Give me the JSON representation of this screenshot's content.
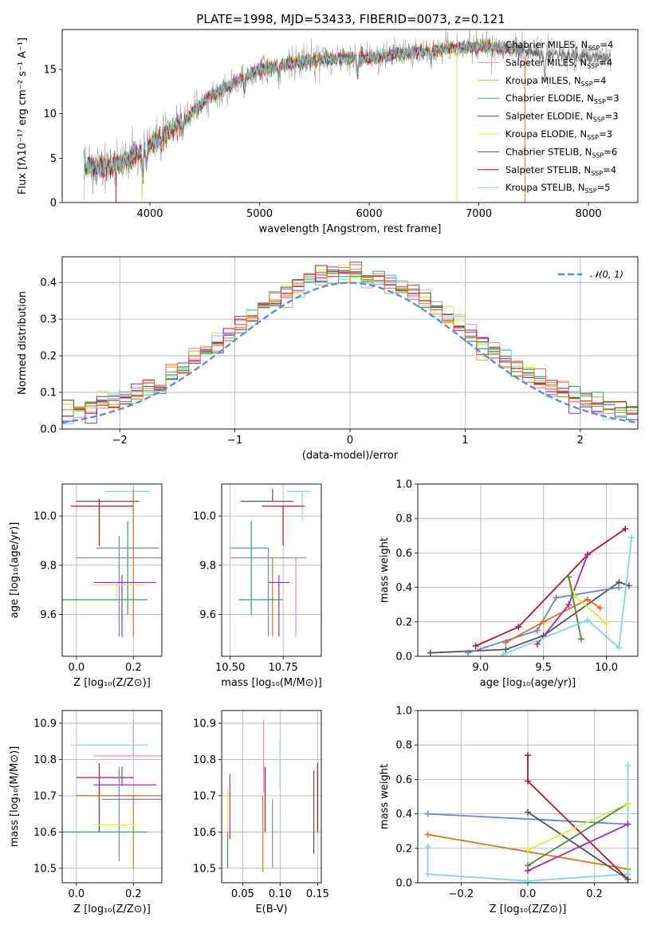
{
  "title": "PLATE=1998, MJD=53433, FIBERID=0073, z=0.121",
  "colors": {
    "Chabrier MILES": "#9a9a9a",
    "Salpeter MILES": "#e78ac3",
    "Kroupa MILES": "#e6a23c",
    "Chabrier ELODIE": "#2ca25f",
    "Salpeter ELODIE": "#9b30b0",
    "Kroupa ELODIE": "#d9ec4a",
    "Chabrier STELIB": "#555555",
    "Salpeter STELIB": "#b2182b",
    "Kroupa STELIB": "#7fd7dc",
    "blue": "#6688cc",
    "orange": "#e07020",
    "green2": "#4a8a3a"
  },
  "chart_data": [
    {
      "id": "spectrum",
      "type": "line",
      "xlabel": "wavelength [Angstrom, rest frame]",
      "ylabel": "Flux [fλ10⁻¹⁷ erg cm⁻² s⁻¹ A⁻¹]",
      "xlim": [
        3200,
        8450
      ],
      "ylim": [
        0,
        19.5
      ],
      "xticks": [
        4000,
        5000,
        6000,
        7000,
        8000
      ],
      "yticks": [
        0,
        5,
        10,
        15
      ],
      "continuum": [
        [
          3400,
          4.3
        ],
        [
          3600,
          4.0
        ],
        [
          3800,
          4.8
        ],
        [
          3950,
          6.0
        ],
        [
          4050,
          7.0
        ],
        [
          4300,
          9.0
        ],
        [
          4500,
          11.5
        ],
        [
          4800,
          13.8
        ],
        [
          5000,
          15.0
        ],
        [
          5300,
          15.7
        ],
        [
          5600,
          16.2
        ],
        [
          6000,
          16.3
        ],
        [
          6300,
          16.8
        ],
        [
          6600,
          17.2
        ],
        [
          7000,
          17.6
        ],
        [
          7300,
          17.4
        ],
        [
          7600,
          16.7
        ],
        [
          7900,
          16.4
        ],
        [
          8200,
          16.4
        ]
      ],
      "legend": [
        {
          "label": "Chabrier MILES, N",
          "sub": "SSP",
          "value": "=4",
          "color": "#9a9a9a"
        },
        {
          "label": "Salpeter MILES, N",
          "sub": "SSP",
          "value": "=4",
          "color": "#e78ac3"
        },
        {
          "label": "Kroupa MILES, N",
          "sub": "SSP",
          "value": "=4",
          "color": "#e6a23c"
        },
        {
          "label": "Chabrier ELODIE, N",
          "sub": "SSP",
          "value": "=3",
          "color": "#2ca25f"
        },
        {
          "label": "Salpeter ELODIE, N",
          "sub": "SSP",
          "value": "=3",
          "color": "#9b30b0"
        },
        {
          "label": "Kroupa ELODIE, N",
          "sub": "SSP",
          "value": "=3",
          "color": "#d9ec4a"
        },
        {
          "label": "Chabrier STELIB, N",
          "sub": "SSP",
          "value": "=6",
          "color": "#555555"
        },
        {
          "label": "Salpeter STELIB, N",
          "sub": "SSP",
          "value": "=4",
          "color": "#b2182b"
        },
        {
          "label": "Kroupa STELIB, N",
          "sub": "SSP",
          "value": "=5",
          "color": "#7fd7dc"
        }
      ]
    },
    {
      "id": "residuals",
      "type": "step",
      "xlabel": "(data-model)/error",
      "ylabel": "Normed distribution",
      "xlim": [
        -2.5,
        2.5
      ],
      "ylim": [
        0,
        0.47
      ],
      "xticks": [
        -2,
        -1,
        0,
        1,
        2
      ],
      "yticks": [
        0.0,
        0.1,
        0.2,
        0.3,
        0.4
      ],
      "normal_label": "𝒩(0, 1)",
      "normal_color": "#5b8fd9"
    },
    {
      "id": "age-vs-Z",
      "type": "errorbar",
      "xlabel": "Z [log₁₀(Z/Z⊙)]",
      "ylabel": "age  [log₁₀(age/yr)]",
      "xlim": [
        -0.05,
        0.3
      ],
      "ylim": [
        9.43,
        10.13
      ],
      "xticks": [
        0.0,
        0.2
      ],
      "yticks": [
        9.6,
        9.8,
        10.0
      ],
      "points": [
        {
          "color": "#7fd7dc",
          "x": 0.2,
          "y": 10.1,
          "xerr": [
            0.1,
            0.06
          ],
          "yerr": [
            0.12,
            0.02
          ]
        },
        {
          "color": "#555555",
          "x": 0.12,
          "y": 10.06,
          "xerr": [
            0.12,
            0.1
          ],
          "yerr": [
            0.0,
            0.0
          ]
        },
        {
          "color": "#b2182b",
          "x": 0.08,
          "y": 10.04,
          "xerr": [
            0.1,
            0.12
          ],
          "yerr": [
            0.16,
            0.03
          ]
        },
        {
          "color": "#2ca25f",
          "x": 0.18,
          "y": 9.98,
          "xerr": [
            0.0,
            0.0
          ],
          "yerr": [
            0.38,
            0.0
          ]
        },
        {
          "color": "#6688cc",
          "x": 0.15,
          "y": 9.87,
          "xerr": [
            0.08,
            0.14
          ],
          "yerr": [
            0.36,
            0.05
          ]
        },
        {
          "color": "#e07020",
          "x": 0.2,
          "y": 9.83,
          "xerr": [
            0.2,
            0.1
          ],
          "yerr": [
            0.32,
            0.28
          ]
        },
        {
          "color": "#9b30b0",
          "x": 0.16,
          "y": 9.73,
          "xerr": [
            0.1,
            0.12
          ],
          "yerr": [
            0.22,
            0.03
          ]
        },
        {
          "color": "#d9ec4a",
          "x": 0.14,
          "y": 9.72,
          "xerr": [
            0.08,
            0.1
          ],
          "yerr": [
            0.05,
            0.0
          ]
        },
        {
          "color": "#2ca25f",
          "x": 0.1,
          "y": 9.66,
          "xerr": [
            0.17,
            0.15
          ],
          "yerr": [
            0.0,
            0.0
          ]
        }
      ]
    },
    {
      "id": "age-vs-mass",
      "type": "errorbar",
      "xlabel": "mass [log₁₀(M/M⊙)]",
      "ylabel": "",
      "xlim": [
        10.46,
        10.93
      ],
      "ylim": [
        9.43,
        10.13
      ],
      "xticks": [
        10.5,
        10.75
      ],
      "yticks": [
        9.6,
        9.8,
        10.0
      ],
      "points": [
        {
          "color": "#7fd7dc",
          "x": 10.84,
          "y": 10.1,
          "xerr": [
            0.07,
            0.04
          ],
          "yerr": [
            0.12,
            0.0
          ]
        },
        {
          "color": "#555555",
          "x": 10.7,
          "y": 10.06,
          "xerr": [
            0.15,
            0.1
          ],
          "yerr": [
            0.0,
            0.05
          ]
        },
        {
          "color": "#b2182b",
          "x": 10.75,
          "y": 10.04,
          "xerr": [
            0.1,
            0.1
          ],
          "yerr": [
            0.16,
            0.0
          ]
        },
        {
          "color": "#2ca25f",
          "x": 10.6,
          "y": 9.98,
          "xerr": [
            0.0,
            0.0
          ],
          "yerr": [
            0.38,
            0.0
          ]
        },
        {
          "color": "#6688cc",
          "x": 10.68,
          "y": 9.87,
          "xerr": [
            0.18,
            0.0
          ],
          "yerr": [
            0.36,
            0.0
          ]
        },
        {
          "color": "#e07020",
          "x": 10.7,
          "y": 9.83,
          "xerr": [
            0.2,
            0.16
          ],
          "yerr": [
            0.32,
            0.0
          ]
        },
        {
          "color": "#9b30b0",
          "x": 10.73,
          "y": 9.73,
          "xerr": [
            0.05,
            0.05
          ],
          "yerr": [
            0.22,
            0.03
          ]
        },
        {
          "color": "#e78ac3",
          "x": 10.81,
          "y": 9.83,
          "xerr": [
            0.0,
            0.0
          ],
          "yerr": [
            0.32,
            0.0
          ]
        },
        {
          "color": "#2ca25f",
          "x": 10.61,
          "y": 9.66,
          "xerr": [
            0.07,
            0.14
          ],
          "yerr": [
            0.0,
            0.0
          ]
        }
      ]
    },
    {
      "id": "weight-vs-age",
      "type": "line",
      "xlabel": "age  [log₁₀(age/yr)]",
      "ylabel": "mass weight",
      "xlim": [
        8.5,
        10.25
      ],
      "ylim": [
        0.0,
        1.0
      ],
      "xticks": [
        9.0,
        9.5,
        10.0
      ],
      "yticks": [
        0.0,
        0.2,
        0.4,
        0.6,
        0.8,
        1.0
      ],
      "series": [
        {
          "color": "#b2182b",
          "x": [
            8.96,
            9.3,
            9.85,
            10.15
          ],
          "y": [
            0.06,
            0.17,
            0.59,
            0.74
          ]
        },
        {
          "color": "#555555",
          "x": [
            8.6,
            9.2,
            9.5,
            10.1,
            10.18
          ],
          "y": [
            0.02,
            0.04,
            0.12,
            0.43,
            0.41
          ]
        },
        {
          "color": "#6688cc",
          "x": [
            8.9,
            9.45,
            9.6,
            10.1
          ],
          "y": [
            0.02,
            0.15,
            0.34,
            0.4
          ]
        },
        {
          "color": "#e07020",
          "x": [
            9.2,
            9.5,
            9.85,
            9.95
          ],
          "y": [
            0.08,
            0.2,
            0.33,
            0.28
          ]
        },
        {
          "color": "#9b30b0",
          "x": [
            9.45,
            9.7,
            9.85
          ],
          "y": [
            0.07,
            0.3,
            0.59
          ]
        },
        {
          "color": "#d9ec4a",
          "x": [
            9.7,
            9.75,
            10.0
          ],
          "y": [
            0.46,
            0.35,
            0.19
          ]
        },
        {
          "color": "#4a8a3a",
          "x": [
            9.7,
            9.8
          ],
          "y": [
            0.46,
            0.1
          ]
        },
        {
          "color": "#7fd7dc",
          "x": [
            9.18,
            9.85,
            10.1,
            10.2
          ],
          "y": [
            0.01,
            0.21,
            0.05,
            0.69
          ]
        }
      ]
    },
    {
      "id": "mass-vs-Z",
      "type": "errorbar",
      "xlabel": "Z [log₁₀(Z/Z⊙)]",
      "ylabel": "mass [log₁₀(M/M⊙)]",
      "xlim": [
        -0.05,
        0.3
      ],
      "ylim": [
        10.46,
        10.935
      ],
      "xticks": [
        0.0,
        0.2
      ],
      "yticks": [
        10.5,
        10.6,
        10.7,
        10.8,
        10.9
      ],
      "points": [
        {
          "color": "#e78ac3",
          "x": 0.2,
          "y": 10.81,
          "xerr": [
            0.14,
            0.1
          ],
          "yerr": [
            0.0,
            0.1
          ]
        },
        {
          "color": "#7fd7dc",
          "x": 0.2,
          "y": 10.84,
          "xerr": [
            0.22,
            0.05
          ],
          "yerr": [
            0.02,
            0.0
          ]
        },
        {
          "color": "#b2182b",
          "x": 0.08,
          "y": 10.75,
          "xerr": [
            0.08,
            0.12
          ],
          "yerr": [
            0.15,
            0.04
          ]
        },
        {
          "color": "#9b30b0",
          "x": 0.16,
          "y": 10.73,
          "xerr": [
            0.1,
            0.12
          ],
          "yerr": [
            0.0,
            0.05
          ]
        },
        {
          "color": "#555555",
          "x": 0.1,
          "y": 10.7,
          "xerr": [
            0.1,
            0.12
          ],
          "yerr": [
            0.0,
            0.0
          ]
        },
        {
          "color": "#e07020",
          "x": 0.2,
          "y": 10.7,
          "xerr": [
            0.2,
            0.1
          ],
          "yerr": [
            0.2,
            0.0
          ]
        },
        {
          "color": "#6688cc",
          "x": 0.15,
          "y": 10.69,
          "xerr": [
            0.06,
            0.15
          ],
          "yerr": [
            0.17,
            0.09
          ]
        },
        {
          "color": "#d9ec4a",
          "x": 0.14,
          "y": 10.62,
          "xerr": [
            0.08,
            0.07
          ],
          "yerr": [
            0.0,
            0.0
          ]
        },
        {
          "color": "#2ca25f",
          "x": 0.1,
          "y": 10.6,
          "xerr": [
            0.17,
            0.15
          ],
          "yerr": [
            0.0,
            0.0
          ]
        }
      ]
    },
    {
      "id": "mass-vs-ebv",
      "type": "errorbar",
      "xlabel": "E(B-V)",
      "ylabel": "",
      "xlim": [
        0.022,
        0.155
      ],
      "ylim": [
        10.46,
        10.935
      ],
      "xticks": [
        0.05,
        0.1,
        0.15
      ],
      "yticks": [
        10.5,
        10.6,
        10.7,
        10.8,
        10.9
      ],
      "points": [
        {
          "color": "#d9ec4a",
          "x": 0.03,
          "y": 10.62,
          "xerr": [
            0.0,
            0.0
          ],
          "yerr": [
            0.12,
            0.1
          ]
        },
        {
          "color": "#9b30b0",
          "x": 0.033,
          "y": 10.68,
          "xerr": [
            0.0,
            0.0
          ],
          "yerr": [
            0.1,
            0.08
          ]
        },
        {
          "color": "#2ca25f",
          "x": 0.03,
          "y": 10.6,
          "xerr": [
            0.0,
            0.0
          ],
          "yerr": [
            0.1,
            0.0
          ]
        },
        {
          "color": "#e07020",
          "x": 0.077,
          "y": 10.7,
          "xerr": [
            0.0,
            0.0
          ],
          "yerr": [
            0.21,
            0.0
          ]
        },
        {
          "color": "#e78ac3",
          "x": 0.078,
          "y": 10.81,
          "xerr": [
            0.0,
            0.0
          ],
          "yerr": [
            0.1,
            0.1
          ]
        },
        {
          "color": "#b2182b",
          "x": 0.08,
          "y": 10.75,
          "xerr": [
            0.0,
            0.0
          ],
          "yerr": [
            0.15,
            0.03
          ]
        },
        {
          "color": "#6688cc",
          "x": 0.09,
          "y": 10.6,
          "xerr": [
            0.0,
            0.0
          ],
          "yerr": [
            0.1,
            0.09
          ]
        },
        {
          "color": "#7fd7dc",
          "x": 0.1,
          "y": 10.8,
          "xerr": [
            0.0,
            0.0
          ],
          "yerr": [
            0.08,
            0.05
          ]
        },
        {
          "color": "#555555",
          "x": 0.145,
          "y": 10.65,
          "xerr": [
            0.0,
            0.0
          ],
          "yerr": [
            0.11,
            0.12
          ]
        },
        {
          "color": "#b2182b",
          "x": 0.15,
          "y": 10.69,
          "xerr": [
            0.0,
            0.0
          ],
          "yerr": [
            0.09,
            0.1
          ]
        }
      ]
    },
    {
      "id": "weight-vs-Z",
      "type": "line",
      "xlabel": "Z [log₁₀(Z/Z⊙)]",
      "ylabel": "mass weight",
      "xlim": [
        -0.33,
        0.33
      ],
      "ylim": [
        0.0,
        1.0
      ],
      "xticks": [
        -0.2,
        0.0,
        0.2
      ],
      "yticks": [
        0.0,
        0.2,
        0.4,
        0.6,
        0.8,
        1.0
      ],
      "series": [
        {
          "color": "#6688cc",
          "x": [
            -0.3,
            0.3
          ],
          "y": [
            0.4,
            0.34
          ]
        },
        {
          "color": "#e07020",
          "x": [
            -0.3,
            0.3
          ],
          "y": [
            0.28,
            0.08
          ]
        },
        {
          "color": "#7fd7dc",
          "x": [
            -0.3,
            -0.3,
            0.0,
            0.3,
            0.3
          ],
          "y": [
            0.21,
            0.05,
            0.01,
            0.05,
            0.68
          ]
        },
        {
          "color": "#b2182b",
          "x": [
            0.0,
            0.0,
            0.3
          ],
          "y": [
            0.74,
            0.59,
            0.02
          ]
        },
        {
          "color": "#555555",
          "x": [
            0.0,
            0.3
          ],
          "y": [
            0.41,
            0.02
          ]
        },
        {
          "color": "#4a8a3a",
          "x": [
            0.0,
            0.3
          ],
          "y": [
            0.1,
            0.46
          ]
        },
        {
          "color": "#d9ec4a",
          "x": [
            0.0,
            0.3
          ],
          "y": [
            0.19,
            0.46
          ]
        },
        {
          "color": "#9b30b0",
          "x": [
            0.0,
            0.3
          ],
          "y": [
            0.07,
            0.34
          ]
        }
      ]
    }
  ]
}
